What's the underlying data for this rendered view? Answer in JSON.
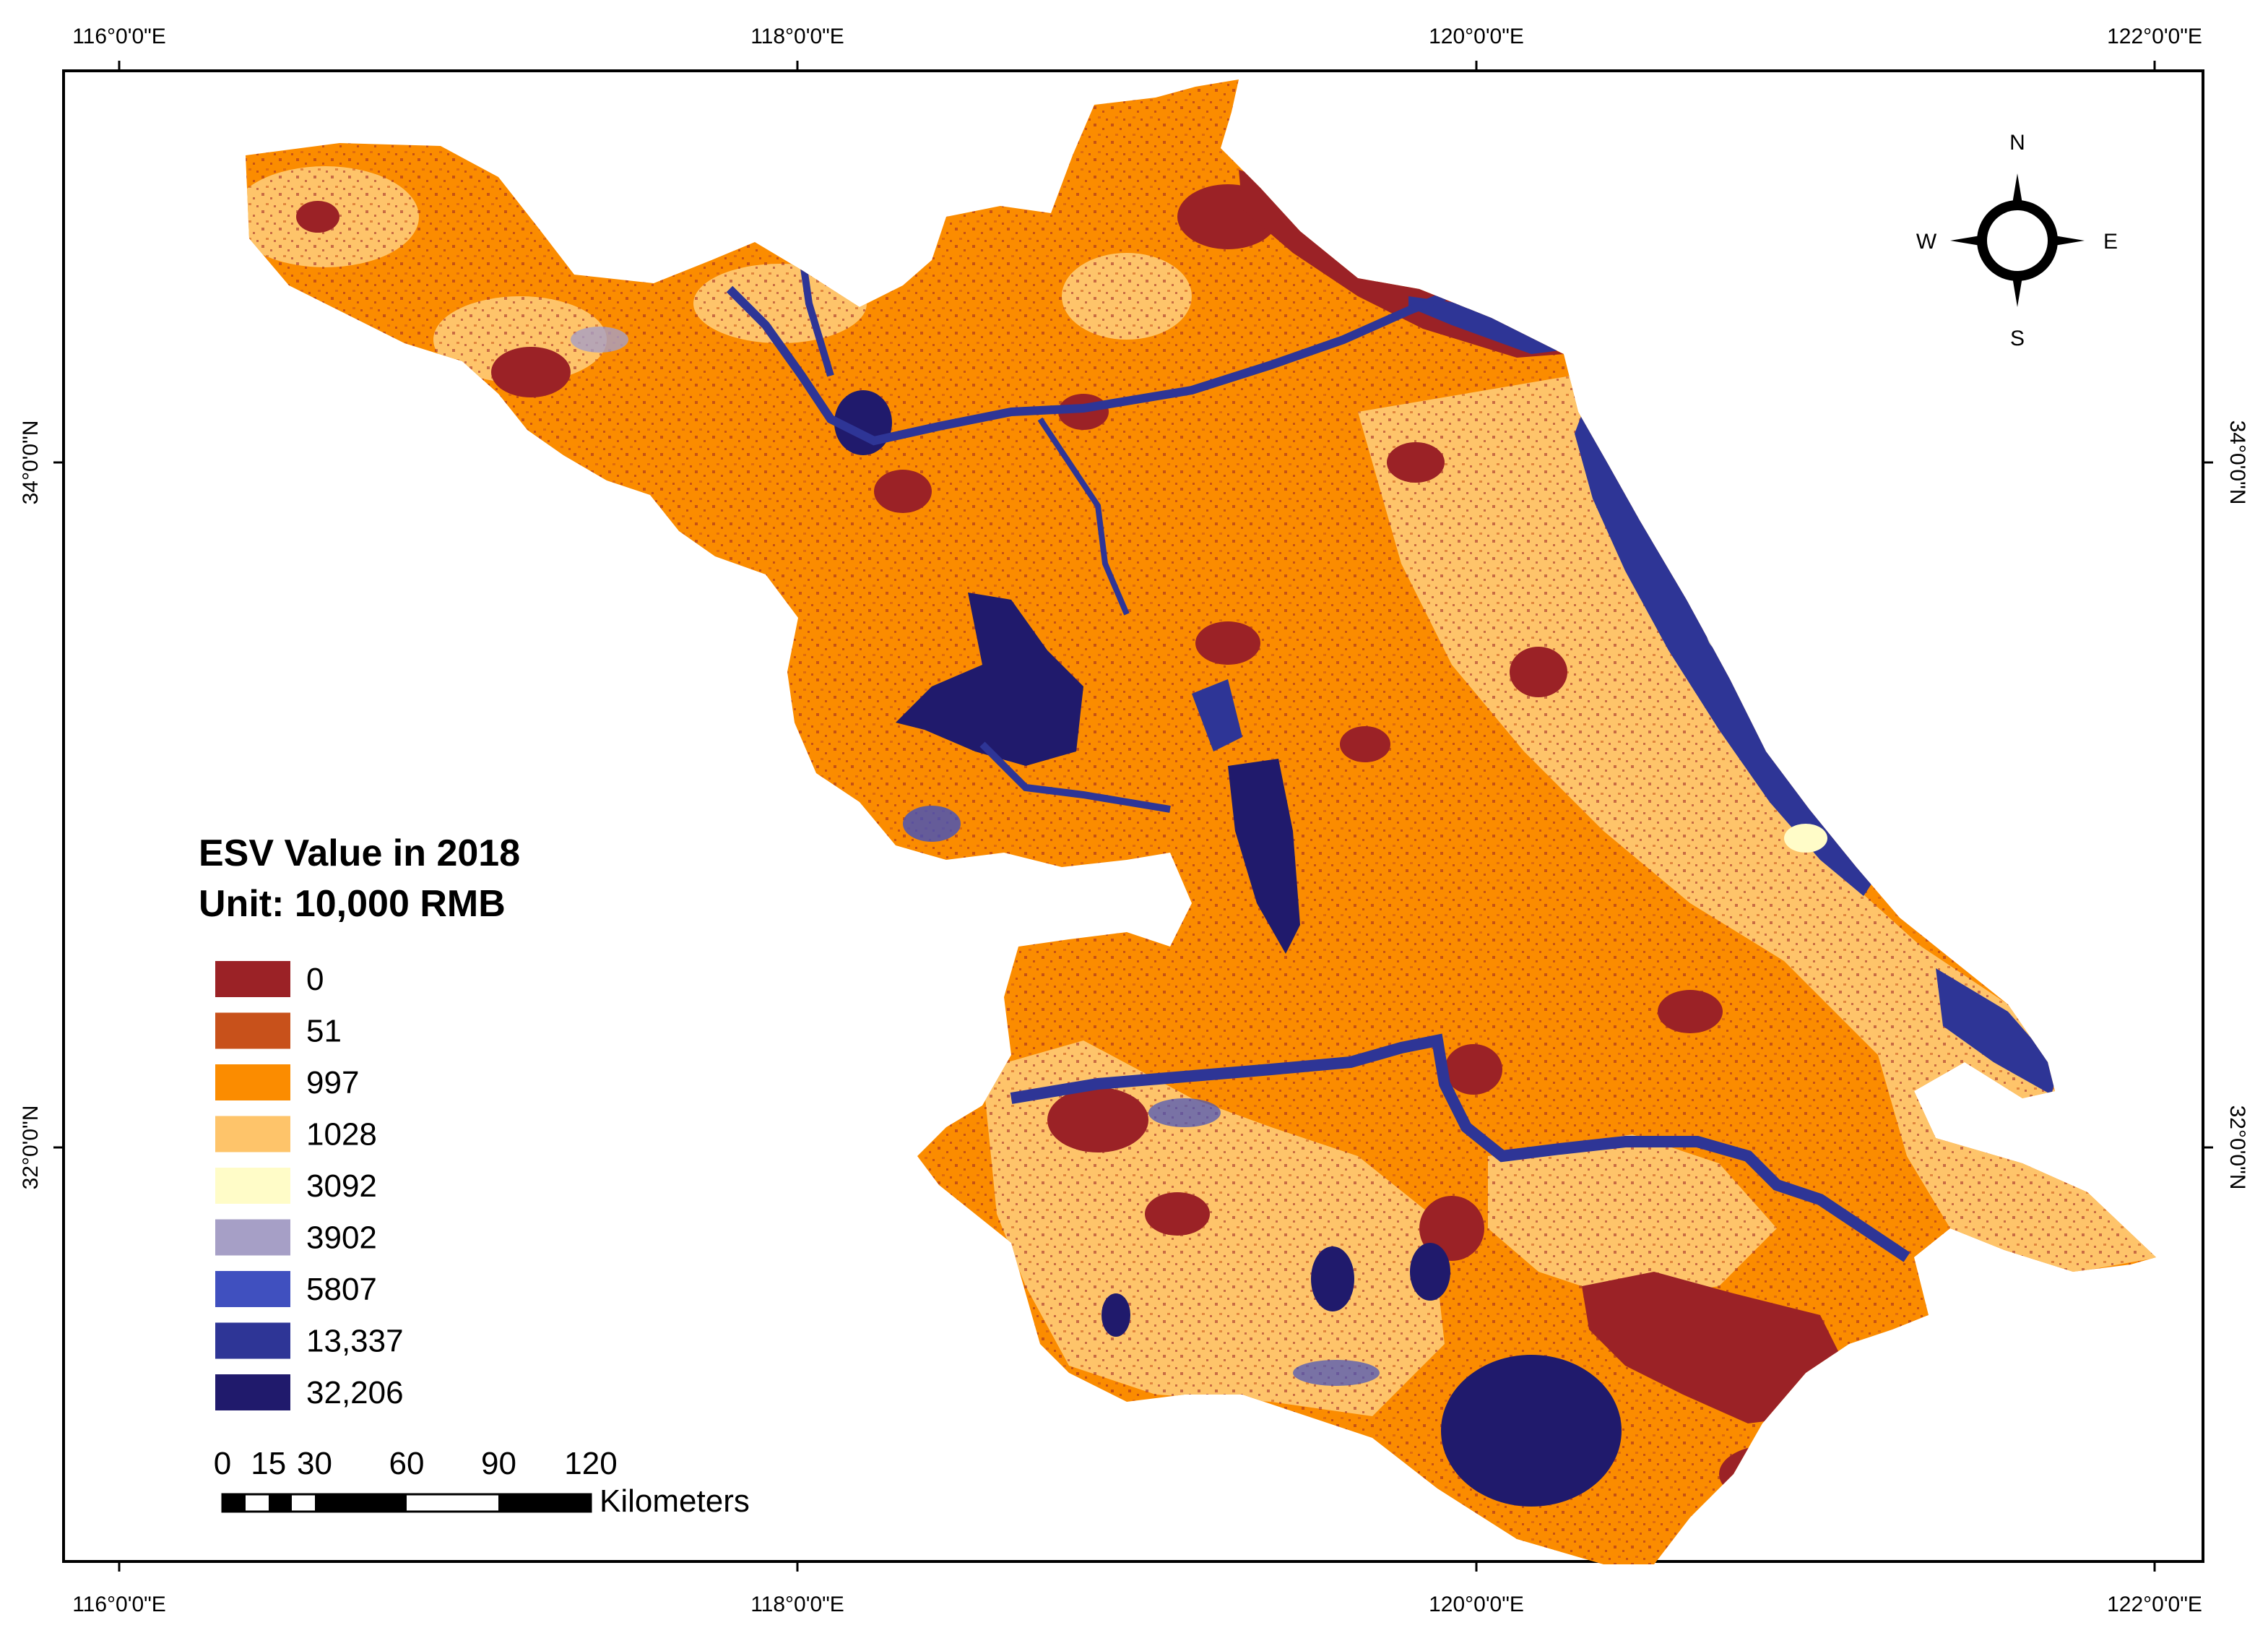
{
  "map": {
    "graticule": {
      "top_labels": [
        "116°0'0\"E",
        "118°0'0\"E",
        "120°0'0\"E",
        "122°0'0\"E"
      ],
      "bottom_labels": [
        "116°0'0\"E",
        "118°0'0\"E",
        "120°0'0\"E",
        "122°0'0\"E"
      ],
      "left_labels": [
        "34°0'0\"N",
        "32°0'0\"N"
      ],
      "right_labels": [
        "34°0'0\"N",
        "32°0'0\"N"
      ]
    },
    "north_arrow": {
      "n": "N",
      "s": "S",
      "e": "E",
      "w": "W"
    },
    "legend": {
      "title_line1": "ESV Value in 2018",
      "title_line2": "Unit: 10,000  RMB",
      "items": [
        {
          "label": "0",
          "color": "#9b2226"
        },
        {
          "label": "51",
          "color": "#c8511b"
        },
        {
          "label": "997",
          "color": "#fb8c00"
        },
        {
          "label": "1028",
          "color": "#fec46a"
        },
        {
          "label": "3092",
          "color": "#fffcc8"
        },
        {
          "label": "3902",
          "color": "#a69fc6"
        },
        {
          "label": "5807",
          "color": "#4050bf"
        },
        {
          "label": "13,337",
          "color": "#2e3596"
        },
        {
          "label": "32,206",
          "color": "#201a6c"
        }
      ]
    },
    "scale_bar": {
      "labels": [
        "0",
        "15",
        "30",
        "60",
        "90",
        "120"
      ],
      "unit": "Kilometers"
    }
  }
}
